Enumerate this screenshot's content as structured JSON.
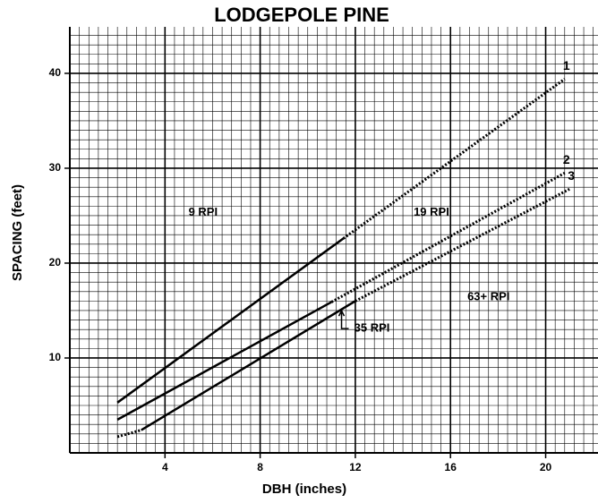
{
  "chart_data": {
    "type": "line",
    "title": "LODGEPOLE PINE",
    "xlabel": "DBH (inches)",
    "ylabel": "SPACING (feet)",
    "xlim": [
      0,
      22.2
    ],
    "ylim": [
      0,
      44.9
    ],
    "xticks": [
      4,
      8,
      12,
      16,
      20
    ],
    "yticks": [
      10,
      20,
      30,
      40
    ],
    "grid": true,
    "minor_grid": {
      "x": 0.4,
      "y": 1
    },
    "series": [
      {
        "name": "1",
        "color": "#000000",
        "x": [
          2,
          11.5,
          20.8
        ],
        "values": [
          5.3,
          22.6,
          39.4
        ],
        "segments": [
          "solid",
          "dotted"
        ]
      },
      {
        "name": "2",
        "color": "#000000",
        "x": [
          2,
          11,
          20.8
        ],
        "values": [
          3.5,
          15.9,
          29.5
        ],
        "segments": [
          "solid",
          "dotted"
        ]
      },
      {
        "name": "3",
        "color": "#000000",
        "x": [
          2,
          3,
          12,
          21
        ],
        "values": [
          1.7,
          2.4,
          16,
          27.8
        ],
        "segments": [
          "dotted",
          "solid",
          "dotted"
        ]
      }
    ],
    "annotations": [
      {
        "text": "9 RPI",
        "x": 5.6,
        "y": 25.3
      },
      {
        "text": "19 RPI",
        "x": 15.2,
        "y": 25.3
      },
      {
        "text": "63+ RPI",
        "x": 17.6,
        "y": 16.4
      },
      {
        "text": "35 RPI",
        "x": 12.7,
        "y": 13.1
      }
    ]
  }
}
